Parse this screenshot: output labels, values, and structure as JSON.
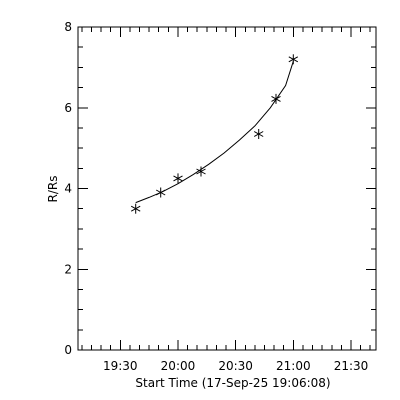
{
  "chart_data": {
    "type": "scatter",
    "title": "",
    "xlabel": "Start Time (17-Sep-25 19:06:08)",
    "ylabel": "R/Rs",
    "x_tick_labels": [
      "19:30",
      "20:00",
      "20:30",
      "21:00",
      "21:30"
    ],
    "x_tick_minutes": [
      0,
      30,
      60,
      90,
      120
    ],
    "y_tick_labels": [
      "0",
      "2",
      "4",
      "6",
      "8"
    ],
    "xlim_minutes_from_1930": [
      -22,
      133
    ],
    "ylim": [
      0,
      8
    ],
    "grid": false,
    "series": [
      {
        "x": [
          "19:38",
          "19:51",
          "20:00",
          "20:12",
          "20:42",
          "20:51",
          "21:00"
        ],
        "y": [
          3.5,
          3.9,
          4.25,
          4.42,
          5.35,
          6.22,
          7.2
        ]
      }
    ],
    "fit": {
      "x": [
        "19:38",
        "19:45",
        "19:52",
        "20:00",
        "20:08",
        "20:16",
        "20:24",
        "20:32",
        "20:40",
        "20:48",
        "20:56",
        "21:00"
      ],
      "y": [
        3.65,
        3.78,
        3.92,
        4.12,
        4.35,
        4.6,
        4.88,
        5.2,
        5.55,
        6.0,
        6.55,
        7.15
      ]
    }
  }
}
